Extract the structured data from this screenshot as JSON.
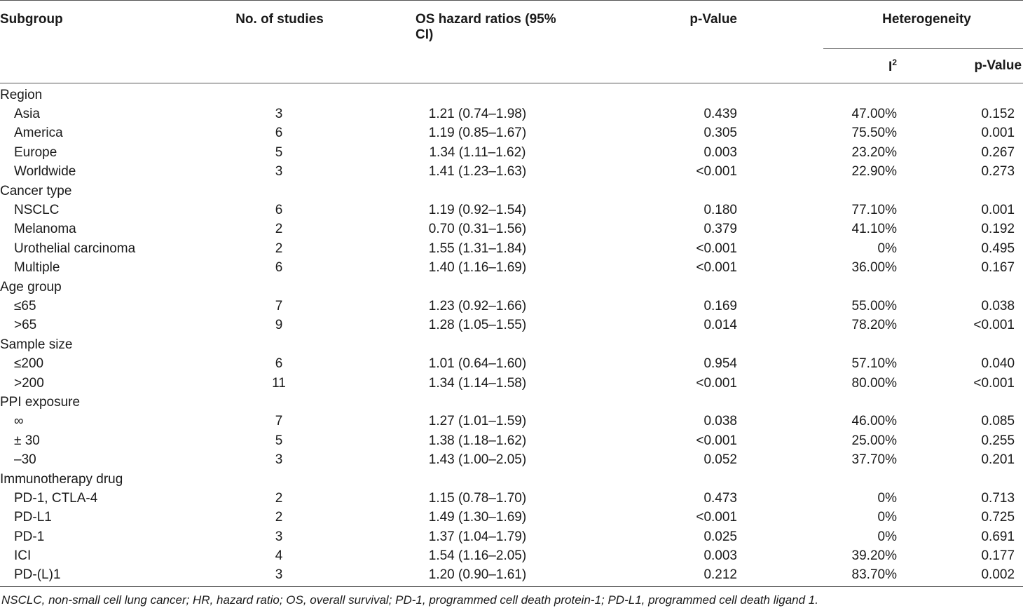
{
  "headers": {
    "subgroup": "Subgroup",
    "studies": "No. of studies",
    "hr": "OS hazard ratios (95% CI)",
    "pvalue": "p-Value",
    "heterogeneity": "Heterogeneity",
    "i2_base": "I",
    "i2_sup": "2",
    "het_pvalue": "p-Value"
  },
  "rows": [
    {
      "type": "group",
      "label": "Region"
    },
    {
      "type": "item",
      "label": "Asia",
      "n": "3",
      "hr": "1.21 (0.74–1.98)",
      "p": "0.439",
      "i2": "47.00%",
      "hp": "0.152"
    },
    {
      "type": "item",
      "label": "America",
      "n": "6",
      "hr": "1.19 (0.85–1.67)",
      "p": "0.305",
      "i2": "75.50%",
      "hp": "0.001"
    },
    {
      "type": "item",
      "label": "Europe",
      "n": "5",
      "hr": "1.34 (1.11–1.62)",
      "p": "0.003",
      "i2": "23.20%",
      "hp": "0.267"
    },
    {
      "type": "item",
      "label": "Worldwide",
      "n": "3",
      "hr": "1.41 (1.23–1.63)",
      "p": "<0.001",
      "i2": "22.90%",
      "hp": "0.273"
    },
    {
      "type": "group",
      "label": "Cancer type"
    },
    {
      "type": "item",
      "label": "NSCLC",
      "n": "6",
      "hr": "1.19 (0.92–1.54)",
      "p": "0.180",
      "i2": "77.10%",
      "hp": "0.001"
    },
    {
      "type": "item",
      "label": "Melanoma",
      "n": "2",
      "hr": "0.70 (0.31–1.56)",
      "p": "0.379",
      "i2": "41.10%",
      "hp": "0.192"
    },
    {
      "type": "item",
      "label": "Urothelial carcinoma",
      "n": "2",
      "hr": "1.55 (1.31–1.84)",
      "p": "<0.001",
      "i2": "0%",
      "hp": "0.495"
    },
    {
      "type": "item",
      "label": "Multiple",
      "n": "6",
      "hr": "1.40 (1.16–1.69)",
      "p": "<0.001",
      "i2": "36.00%",
      "hp": "0.167"
    },
    {
      "type": "group",
      "label": "Age group"
    },
    {
      "type": "item",
      "label": "≤65",
      "n": "7",
      "hr": "1.23 (0.92–1.66)",
      "p": "0.169",
      "i2": "55.00%",
      "hp": "0.038"
    },
    {
      "type": "item",
      "label": ">65",
      "n": "9",
      "hr": "1.28 (1.05–1.55)",
      "p": "0.014",
      "i2": "78.20%",
      "hp": "<0.001"
    },
    {
      "type": "group",
      "label": "Sample size"
    },
    {
      "type": "item",
      "label": "≤200",
      "n": "6",
      "hr": "1.01 (0.64–1.60)",
      "p": "0.954",
      "i2": "57.10%",
      "hp": "0.040"
    },
    {
      "type": "item",
      "label": ">200",
      "n": "11",
      "hr": "1.34 (1.14–1.58)",
      "p": "<0.001",
      "i2": "80.00%",
      "hp": "<0.001"
    },
    {
      "type": "group",
      "label": "PPI exposure"
    },
    {
      "type": "item",
      "label": "∞",
      "n": "7",
      "hr": "1.27 (1.01–1.59)",
      "p": "0.038",
      "i2": "46.00%",
      "hp": "0.085"
    },
    {
      "type": "item",
      "label": "± 30",
      "n": "5",
      "hr": "1.38 (1.18–1.62)",
      "p": "<0.001",
      "i2": "25.00%",
      "hp": "0.255"
    },
    {
      "type": "item",
      "label": "–30",
      "n": "3",
      "hr": "1.43 (1.00–2.05)",
      "p": "0.052",
      "i2": "37.70%",
      "hp": "0.201"
    },
    {
      "type": "group",
      "label": "Immunotherapy drug"
    },
    {
      "type": "item",
      "label": "PD-1, CTLA-4",
      "n": "2",
      "hr": "1.15 (0.78–1.70)",
      "p": "0.473",
      "i2": "0%",
      "hp": "0.713"
    },
    {
      "type": "item",
      "label": "PD-L1",
      "n": "2",
      "hr": "1.49 (1.30–1.69)",
      "p": "<0.001",
      "i2": "0%",
      "hp": "0.725"
    },
    {
      "type": "item",
      "label": "PD-1",
      "n": "3",
      "hr": "1.37 (1.04–1.79)",
      "p": "0.025",
      "i2": "0%",
      "hp": "0.691"
    },
    {
      "type": "item",
      "label": "ICI",
      "n": "4",
      "hr": "1.54 (1.16–2.05)",
      "p": "0.003",
      "i2": "39.20%",
      "hp": "0.177"
    },
    {
      "type": "item",
      "label": "PD-(L)1",
      "n": "3",
      "hr": "1.20 (0.90–1.61)",
      "p": "0.212",
      "i2": "83.70%",
      "hp": "0.002"
    }
  ],
  "footnote": "NSCLC, non-small cell lung cancer; HR, hazard ratio; OS, overall survival; PD-1, programmed cell death protein-1; PD-L1, programmed cell death ligand 1."
}
